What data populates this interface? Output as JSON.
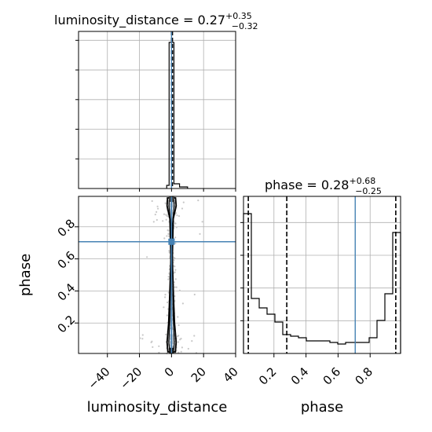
{
  "chart_data": {
    "type": "corner",
    "parameters": [
      "luminosity_distance",
      "phase"
    ],
    "axis_labels": {
      "x_left": "luminosity_distance",
      "x_right": "phase",
      "y_left": "phase"
    },
    "titles": {
      "luminosity_distance": {
        "name": "luminosity_distance",
        "median": "0.27",
        "plus": "+0.35",
        "minus": "−0.32"
      },
      "phase": {
        "name": "phase",
        "median": "0.28",
        "plus": "+0.68",
        "minus": "−0.25"
      }
    },
    "ranges": {
      "luminosity_distance": [
        -58,
        40
      ],
      "phase": [
        0.01,
        0.99
      ]
    },
    "ticks": {
      "luminosity_distance": {
        "values": [
          -40,
          -20,
          0,
          20,
          40
        ],
        "labels": [
          "−40",
          "−20",
          "0",
          "20",
          "40"
        ]
      },
      "phase": {
        "values": [
          0.2,
          0.4,
          0.6,
          0.8
        ],
        "labels": [
          "0.2",
          "0.4",
          "0.6",
          "0.8"
        ]
      }
    },
    "truth": {
      "luminosity_distance": 0.0,
      "phase": 0.707
    },
    "quantiles": {
      "luminosity_distance": [
        -0.05,
        0.27,
        0.62
      ],
      "phase": [
        0.04,
        0.28,
        0.96
      ]
    },
    "hist_luminosity_distance": {
      "bins": [
        [
          -3.0,
          -1.5,
          0.02
        ],
        [
          -1.5,
          0.0,
          0.93
        ],
        [
          0.0,
          1.5,
          0.93
        ],
        [
          1.5,
          5.0,
          0.03
        ],
        [
          5.0,
          10.0,
          0.01
        ]
      ],
      "ymax": 1.0
    },
    "hist_phase": {
      "edges": [
        0.01,
        0.059,
        0.108,
        0.157,
        0.206,
        0.255,
        0.304,
        0.353,
        0.402,
        0.451,
        0.5,
        0.549,
        0.598,
        0.647,
        0.696,
        0.745,
        0.794,
        0.843,
        0.892,
        0.941,
        0.99
      ],
      "counts": [
        0.89,
        0.35,
        0.29,
        0.25,
        0.2,
        0.12,
        0.11,
        0.1,
        0.08,
        0.08,
        0.08,
        0.07,
        0.06,
        0.07,
        0.07,
        0.07,
        0.1,
        0.21,
        0.38,
        0.77
      ],
      "ymax": 1.0
    },
    "grid": true,
    "colors": {
      "truth": "#4682b4",
      "contour": "#000000",
      "samples": "#c8c8c8",
      "grid": "#b0b0b0"
    }
  }
}
